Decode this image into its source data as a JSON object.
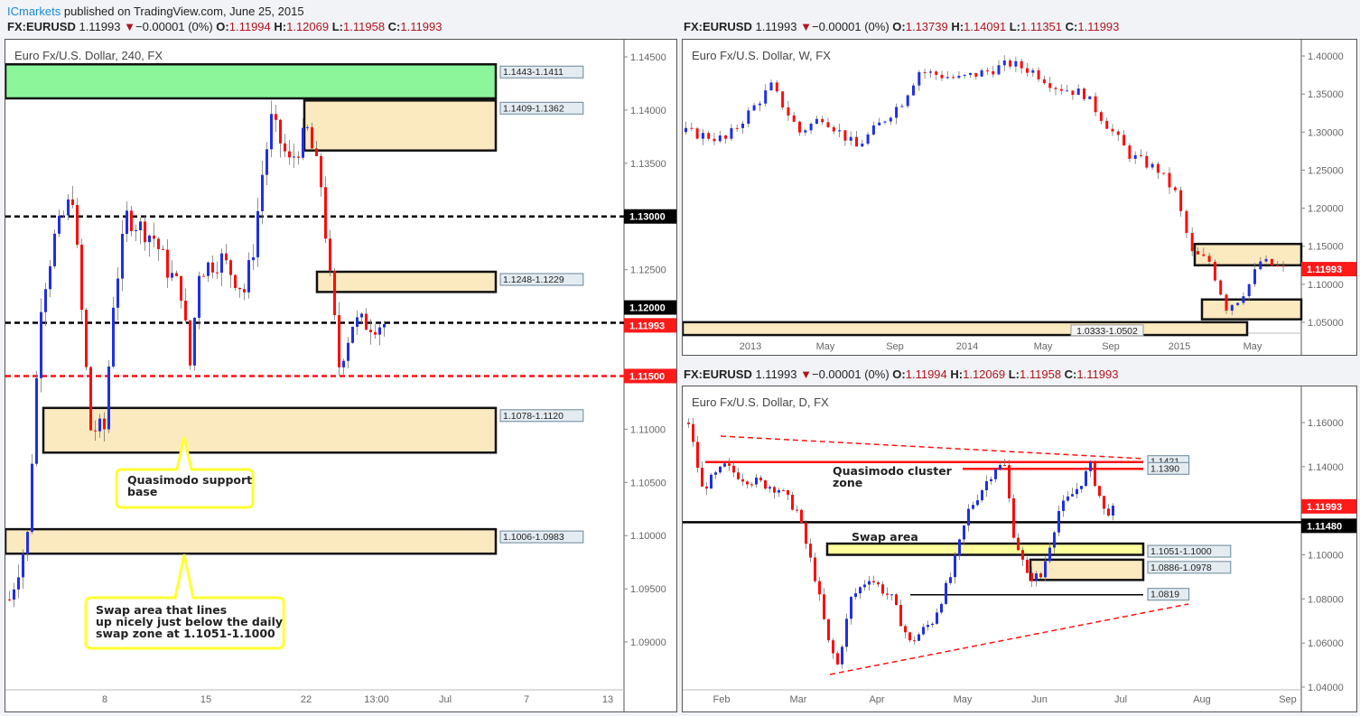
{
  "header": {
    "publisher": "ICmarkets",
    "published_text": " published on TradingView.com, June 25, 2015"
  },
  "colors": {
    "up": "#1f2fe6",
    "down": "#ff0a0a",
    "zone": "#fbe9bf",
    "green": "#8cf79a",
    "yellow": "#ffff9e",
    "tag_red": "#ff1a1a",
    "tag_black": "#000000"
  },
  "chart_data": [
    {
      "type": "candlestick",
      "id": "h4",
      "legend": {
        "symbol": "FX:EURUSD",
        "last": "1.11993",
        "change": "−0.00001 (0%)",
        "O": "1.11994",
        "H": "1.12069",
        "L": "1.11958",
        "C": "1.11993"
      },
      "title": "Euro Fx/U.S. Dollar, 240, FX",
      "ylim": [
        1.085,
        1.1475
      ],
      "yticks": [
        "1.14500",
        "1.14000",
        "1.13500",
        "1.12500",
        "1.11000",
        "1.10500",
        "1.10000",
        "1.09500",
        "1.09000"
      ],
      "xticks": [
        "8",
        "15",
        "22",
        "13:00",
        "Jul",
        "7",
        "13"
      ],
      "path": [
        [
          0,
          1.094
        ],
        [
          4,
          1.1
        ],
        [
          7,
          1.122
        ],
        [
          10,
          1.128
        ],
        [
          14,
          1.132
        ],
        [
          18,
          1.11
        ],
        [
          21,
          1.11
        ],
        [
          23,
          1.122
        ],
        [
          26,
          1.13
        ],
        [
          32,
          1.128
        ],
        [
          35,
          1.125
        ],
        [
          38,
          1.123
        ],
        [
          40,
          1.116
        ],
        [
          42,
          1.125
        ],
        [
          47,
          1.126
        ],
        [
          52,
          1.123
        ],
        [
          54,
          1.127
        ],
        [
          56,
          1.134
        ],
        [
          58,
          1.139
        ],
        [
          62,
          1.135
        ],
        [
          66,
          1.138
        ],
        [
          69,
          1.133
        ],
        [
          71,
          1.124
        ],
        [
          73,
          1.116
        ],
        [
          76,
          1.12
        ],
        [
          83,
          1.1199
        ]
      ],
      "zones": [
        {
          "label": "1.1443-1.1411",
          "top": 1.1443,
          "bottom": 1.1411,
          "style": "green"
        },
        {
          "label": "1.1409-1.1362",
          "top": 1.1409,
          "bottom": 1.1362,
          "style": "zone"
        },
        {
          "label": "1.1248-1.1229",
          "top": 1.1248,
          "bottom": 1.1229,
          "style": "zone"
        },
        {
          "label": "1.1078-1.1120",
          "top": 1.112,
          "bottom": 1.1078,
          "style": "zone"
        },
        {
          "label": "1.1006-1.0983",
          "top": 1.1006,
          "bottom": 1.0983,
          "style": "zone"
        }
      ],
      "levels": [
        {
          "price": 1.13,
          "label": "1.13000",
          "style": "black-dashed"
        },
        {
          "price": 1.12,
          "label": "1.12000",
          "style": "black-dashed"
        },
        {
          "price": 1.115,
          "label": "1.11500",
          "style": "red-dashed"
        }
      ],
      "last_tag": "1.11993",
      "annotations": [
        "Quasimodo support",
        "base",
        "Swap area that lines",
        "up nicely just below the daily",
        "swap zone at 1.1051-1.1000"
      ]
    },
    {
      "type": "candlestick",
      "id": "weekly",
      "legend": {
        "symbol": "FX:EURUSD",
        "last": "1.11993",
        "change": "−0.00001 (0%)",
        "O": "1.13739",
        "H": "1.14091",
        "L": "1.11351",
        "C": "1.11993"
      },
      "title": "Euro Fx/U.S. Dollar, W, FX",
      "ylim": [
        1.025,
        1.41
      ],
      "yticks": [
        "1.40000",
        "1.35000",
        "1.30000",
        "1.25000",
        "1.20000",
        "1.15000",
        "1.10000",
        "1.05000"
      ],
      "xticks": [
        "2013",
        "May",
        "Sep",
        "2014",
        "May",
        "Sep",
        "2015",
        "May"
      ],
      "path": [
        [
          0,
          1.3
        ],
        [
          7,
          1.29
        ],
        [
          15,
          1.36
        ],
        [
          20,
          1.3
        ],
        [
          24,
          1.32
        ],
        [
          30,
          1.28
        ],
        [
          38,
          1.34
        ],
        [
          41,
          1.38
        ],
        [
          48,
          1.37
        ],
        [
          53,
          1.38
        ],
        [
          57,
          1.39
        ],
        [
          61,
          1.38
        ],
        [
          65,
          1.36
        ],
        [
          70,
          1.35
        ],
        [
          73,
          1.32
        ],
        [
          78,
          1.27
        ],
        [
          83,
          1.25
        ],
        [
          86,
          1.22
        ],
        [
          89,
          1.14
        ],
        [
          92,
          1.13
        ],
        [
          95,
          1.07
        ],
        [
          97,
          1.08
        ],
        [
          99,
          1.1
        ],
        [
          101,
          1.13
        ],
        [
          105,
          1.12
        ]
      ],
      "zones": [
        {
          "top": 1.153,
          "bottom": 1.125,
          "style": "zone"
        },
        {
          "top": 1.08,
          "bottom": 1.054,
          "style": "zone"
        },
        {
          "label": "1.0333-1.0502",
          "top": 1.0502,
          "bottom": 1.0333,
          "style": "zone"
        }
      ],
      "last_tag": "1.11993"
    },
    {
      "type": "candlestick",
      "id": "daily",
      "legend": {
        "symbol": "FX:EURUSD",
        "last": "1.11993",
        "change": "−0.00001 (0%)",
        "O": "1.11994",
        "H": "1.12069",
        "L": "1.11958",
        "C": "1.11993"
      },
      "title": "Euro Fx/U.S. Dollar, D, FX",
      "ylim": [
        1.038,
        1.17
      ],
      "yticks": [
        "1.16000",
        "1.14000",
        "1.10000",
        "1.08000",
        "1.06000",
        "1.04000"
      ],
      "xticks": [
        "Feb",
        "Mar",
        "Apr",
        "May",
        "Jun",
        "Jul",
        "Aug",
        "Sep"
      ],
      "path": [
        [
          0,
          1.16
        ],
        [
          3,
          1.13
        ],
        [
          8,
          1.14
        ],
        [
          12,
          1.135
        ],
        [
          20,
          1.13
        ],
        [
          24,
          1.12
        ],
        [
          28,
          1.09
        ],
        [
          31,
          1.06
        ],
        [
          33,
          1.05
        ],
        [
          36,
          1.08
        ],
        [
          40,
          1.09
        ],
        [
          45,
          1.08
        ],
        [
          49,
          1.06
        ],
        [
          54,
          1.07
        ],
        [
          58,
          1.09
        ],
        [
          62,
          1.12
        ],
        [
          68,
          1.14
        ],
        [
          70,
          1.14
        ],
        [
          72,
          1.11
        ],
        [
          75,
          1.09
        ],
        [
          78,
          1.09
        ],
        [
          82,
          1.12
        ],
        [
          86,
          1.13
        ],
        [
          89,
          1.14
        ],
        [
          92,
          1.12
        ],
        [
          94,
          1.12
        ]
      ],
      "zones": [
        {
          "label": "1.1051-1.1000",
          "top": 1.1051,
          "bottom": 1.1,
          "style": "yellow"
        },
        {
          "label": "1.0886-1.0978",
          "top": 1.0978,
          "bottom": 1.0886,
          "style": "zone"
        }
      ],
      "levels": [
        {
          "price": 1.1421,
          "label": "1.1421",
          "style": "red-solid"
        },
        {
          "price": 1.139,
          "label": "1.1390",
          "style": "red-solid"
        },
        {
          "price": 1.1148,
          "label": "1.11480",
          "style": "black-solid"
        },
        {
          "price": 1.0819,
          "label": "1.0819",
          "style": "black-thin"
        }
      ],
      "last_tag": "1.11993",
      "annotations": [
        "Quasimodo cluster",
        "zone",
        "Swap area"
      ]
    }
  ]
}
